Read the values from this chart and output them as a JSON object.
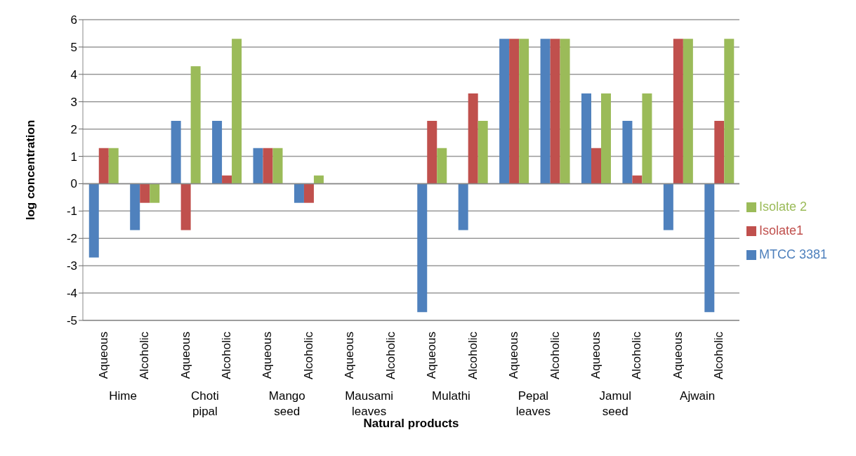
{
  "chart_data": {
    "type": "bar",
    "xlabel": "Natural products",
    "ylabel": "log concentration",
    "categories": [
      "Aqueous",
      "Alcoholic",
      "Aqueous",
      "Alcoholic",
      "Aqueous",
      "Alcoholic",
      "Aqueous",
      "Alcoholic",
      "Aqueous",
      "Alcoholic",
      "Aqueous",
      "Alcoholic",
      "Aqueous",
      "Alcoholic",
      "Aqueous",
      "Alcoholic"
    ],
    "annotations": [
      "Hime",
      "Choti pipal",
      "Mango seed",
      "Mausami leaves",
      "Mulathi",
      "Pepal leaves",
      "Jamul seed",
      "Ajwain"
    ],
    "series": [
      {
        "name": "MTCC 3381",
        "color": "#4f81bd",
        "values": [
          -2.7,
          -1.7,
          2.3,
          2.3,
          1.3,
          -0.7,
          0,
          0,
          -4.7,
          -1.7,
          5.3,
          5.3,
          3.3,
          2.3,
          -1.7,
          -4.7
        ]
      },
      {
        "name": "Isolate1",
        "color": "#c0504d",
        "values": [
          1.3,
          -0.7,
          -1.7,
          0.3,
          1.3,
          -0.7,
          0,
          0,
          2.3,
          3.3,
          5.3,
          5.3,
          1.3,
          0.3,
          5.3,
          2.3
        ]
      },
      {
        "name": "Isolate 2",
        "color": "#9bbb59",
        "values": [
          1.3,
          -0.7,
          4.3,
          5.3,
          1.3,
          0.3,
          0,
          0,
          1.3,
          2.3,
          5.3,
          5.3,
          3.3,
          3.3,
          5.3,
          5.3
        ]
      }
    ],
    "ylim": [
      -5,
      6
    ],
    "yticks": [
      -5,
      -4,
      -3,
      -2,
      -1,
      0,
      1,
      2,
      3,
      4,
      5,
      6
    ],
    "grid": "y",
    "legend": "right"
  }
}
